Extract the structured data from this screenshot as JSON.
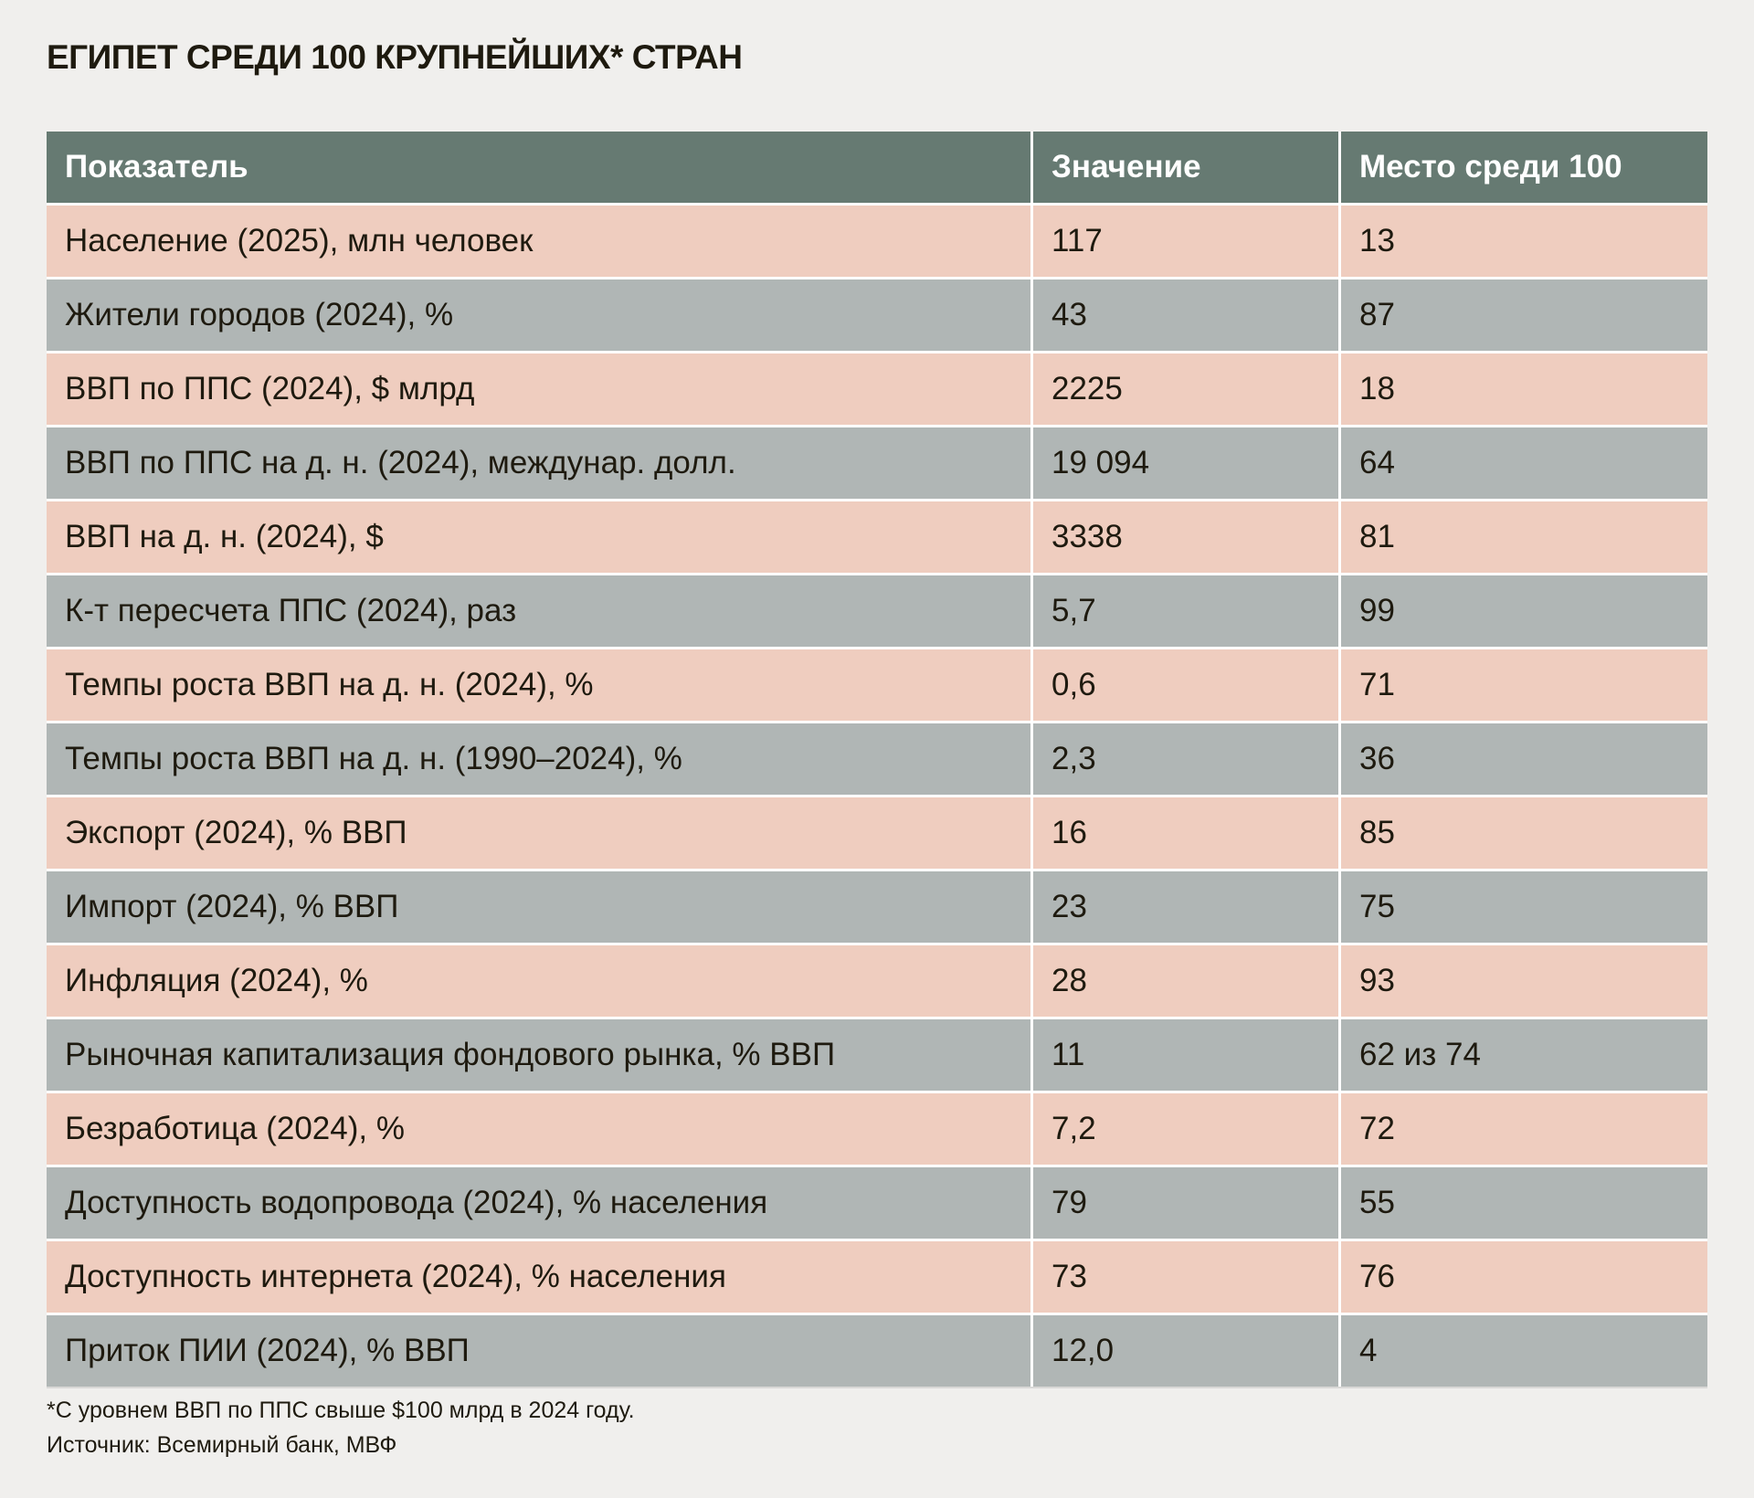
{
  "title": "ЕГИПЕТ СРЕДИ 100 КРУПНЕЙШИХ* СТРАН",
  "colors": {
    "header": "#667a72",
    "row_odd": "#efcdbf",
    "row_even": "#b0b6b5",
    "background": "#f0efed"
  },
  "table": {
    "headers": [
      "Показатель",
      "Значение",
      "Место среди 100"
    ],
    "rows": [
      [
        "Население (2025), млн человек",
        "117",
        "13"
      ],
      [
        "Жители городов (2024), %",
        "43",
        "87"
      ],
      [
        "ВВП по ППС (2024), $ млрд",
        "2225",
        "18"
      ],
      [
        "ВВП по ППС на д. н. (2024), междунар. долл.",
        "19 094",
        "64"
      ],
      [
        "ВВП на д. н. (2024), $",
        "3338",
        "81"
      ],
      [
        "К-т пересчета ППС (2024), раз",
        "5,7",
        "99"
      ],
      [
        "Темпы роста ВВП на д. н. (2024), %",
        "0,6",
        "71"
      ],
      [
        "Темпы роста ВВП на д. н. (1990–2024), %",
        "2,3",
        "36"
      ],
      [
        "Экспорт (2024), % ВВП",
        "16",
        "85"
      ],
      [
        "Импорт (2024), % ВВП",
        "23",
        "75"
      ],
      [
        "Инфляция (2024), %",
        "28",
        "93"
      ],
      [
        "Рыночная капитализация фондового рынка, % ВВП",
        "11",
        "62 из 74"
      ],
      [
        "Безработица (2024), %",
        "7,2",
        "72"
      ],
      [
        "Доступность водопровода (2024), % населения",
        "79",
        "55"
      ],
      [
        "Доступность интернета (2024), % населения",
        "73",
        "76"
      ],
      [
        "Приток ПИИ (2024), % ВВП",
        "12,0",
        "4"
      ]
    ]
  },
  "footnote": "*С уровнем ВВП по ППС свыше $100 млрд в 2024 году.",
  "source": "Источник: Всемирный банк, МВФ"
}
